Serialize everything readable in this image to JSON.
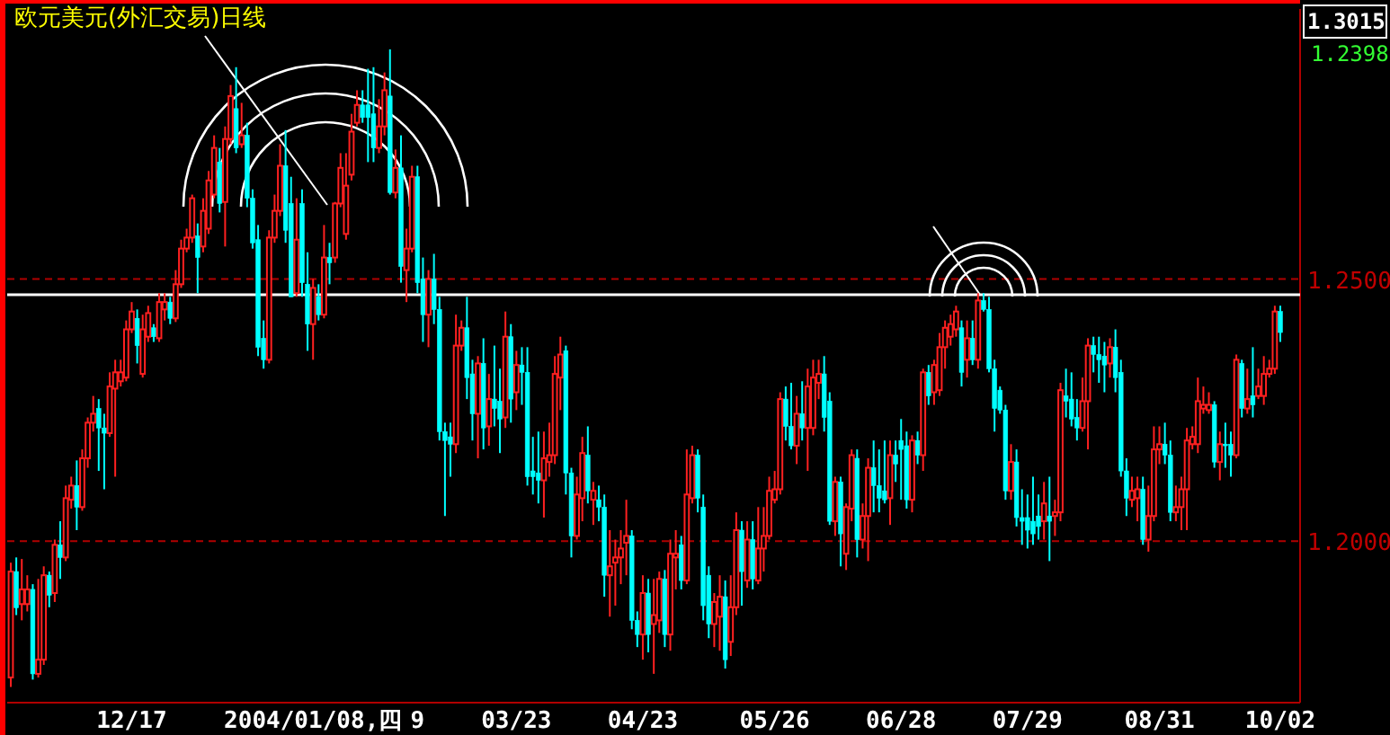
{
  "chart_data": {
    "type": "candlestick",
    "title": "欧元美元(外汇交易)日线",
    "annotations": [
      "1.2398"
    ],
    "categories": [
      null,
      null,
      null,
      null,
      null,
      null,
      null,
      null,
      null,
      null,
      null,
      null,
      null,
      null,
      null,
      null,
      null,
      null,
      null,
      null,
      null,
      null,
      "12/17",
      null,
      null,
      null,
      null,
      null,
      null,
      null,
      null,
      null,
      null,
      null,
      null,
      null,
      null,
      null,
      null,
      null,
      null,
      null,
      null,
      null,
      null,
      null,
      null,
      null,
      null,
      null,
      null,
      null,
      null,
      null,
      null,
      "2004/01/08,四",
      null,
      null,
      null,
      null,
      null,
      null,
      null,
      null,
      null,
      null,
      null,
      null,
      null,
      null,
      null,
      null,
      null,
      null,
      "9",
      null,
      null,
      null,
      null,
      null,
      null,
      null,
      null,
      null,
      null,
      null,
      null,
      null,
      null,
      null,
      null,
      null,
      "03/23",
      null,
      null,
      null,
      null,
      null,
      null,
      null,
      null,
      null,
      null,
      null,
      null,
      null,
      null,
      null,
      null,
      null,
      null,
      null,
      null,
      null,
      null,
      "04/23",
      null,
      null,
      null,
      null,
      null,
      null,
      null,
      null,
      null,
      null,
      null,
      null,
      null,
      null,
      null,
      null,
      null,
      null,
      null,
      null,
      null,
      null,
      null,
      "05/26",
      null,
      null,
      null,
      null,
      null,
      null,
      null,
      null,
      null,
      null,
      null,
      null,
      null,
      null,
      null,
      null,
      null,
      null,
      null,
      null,
      null,
      null,
      "06/28",
      null,
      null,
      null,
      null,
      null,
      null,
      null,
      null,
      null,
      null,
      null,
      null,
      null,
      null,
      null,
      null,
      null,
      null,
      null,
      null,
      null,
      null,
      "07/29",
      null,
      null,
      null,
      null,
      null,
      null,
      null,
      null,
      null,
      null,
      null,
      null,
      null,
      null,
      null,
      null,
      null,
      null,
      null,
      null,
      null,
      null,
      null,
      "08/31",
      null,
      null,
      null,
      null,
      null,
      null,
      null,
      null,
      null,
      null,
      null,
      null,
      null,
      null,
      null,
      null,
      null,
      null,
      null,
      null,
      null,
      "10/02"
    ],
    "ohlc": [
      [
        1.174,
        1.1959,
        1.1722,
        1.1942
      ],
      [
        1.1942,
        1.1969,
        1.1859,
        1.1873
      ],
      [
        1.188,
        1.1966,
        1.1849,
        1.1908
      ],
      [
        1.188,
        1.1935,
        1.1866,
        1.1908
      ],
      [
        1.1908,
        1.1918,
        1.1736,
        1.1747
      ],
      [
        1.1747,
        1.1928,
        1.174,
        1.1774
      ],
      [
        1.1774,
        1.1952,
        1.1764,
        1.1935
      ],
      [
        1.1935,
        1.1942,
        1.1874,
        1.1897
      ],
      [
        1.1901,
        1.2003,
        1.1884,
        1.1993
      ],
      [
        1.1993,
        1.2038,
        1.1928,
        1.1969
      ],
      [
        1.1969,
        1.2106,
        1.1962,
        1.2082
      ],
      [
        1.2079,
        1.2123,
        1.2062,
        1.2106
      ],
      [
        1.2106,
        1.2154,
        1.2021,
        1.2065
      ],
      [
        1.2065,
        1.2175,
        1.2058,
        1.2158
      ],
      [
        1.2158,
        1.2236,
        1.214,
        1.2226
      ],
      [
        1.2226,
        1.2277,
        1.2209,
        1.2243
      ],
      [
        1.2253,
        1.2271,
        1.2134,
        1.2216
      ],
      [
        1.2216,
        1.2243,
        1.2099,
        1.2206
      ],
      [
        1.2206,
        1.2322,
        1.2199,
        1.2295
      ],
      [
        1.2291,
        1.2346,
        1.2123,
        1.2322
      ],
      [
        1.2305,
        1.2346,
        1.2295,
        1.2322
      ],
      [
        1.2312,
        1.2421,
        1.2305,
        1.2404
      ],
      [
        1.2404,
        1.2456,
        1.2397,
        1.2438
      ],
      [
        1.2425,
        1.2442,
        1.2339,
        1.2373
      ],
      [
        1.2319,
        1.2432,
        1.2312,
        1.2404
      ],
      [
        1.239,
        1.2449,
        1.238,
        1.2435
      ],
      [
        1.2407,
        1.2414,
        1.238,
        1.239
      ],
      [
        1.2387,
        1.2473,
        1.238,
        1.2456
      ],
      [
        1.2442,
        1.2473,
        1.2421,
        1.2456
      ],
      [
        1.2456,
        1.2466,
        1.2414,
        1.2425
      ],
      [
        1.2425,
        1.2517,
        1.2418,
        1.249
      ],
      [
        1.249,
        1.2575,
        1.2483,
        1.2558
      ],
      [
        1.2558,
        1.2596,
        1.2551,
        1.2579
      ],
      [
        1.2579,
        1.2661,
        1.2569,
        1.2654
      ],
      [
        1.2582,
        1.2606,
        1.2473,
        1.2541
      ],
      [
        1.2562,
        1.2654,
        1.2551,
        1.263
      ],
      [
        1.2596,
        1.2706,
        1.2586,
        1.2688
      ],
      [
        1.2661,
        1.2774,
        1.2654,
        1.275
      ],
      [
        1.2723,
        1.275,
        1.2627,
        1.2644
      ],
      [
        1.2647,
        1.2791,
        1.2562,
        1.2767
      ],
      [
        1.2767,
        1.287,
        1.2757,
        1.2849
      ],
      [
        1.2825,
        1.2904,
        1.274,
        1.275
      ],
      [
        1.2757,
        1.2836,
        1.275,
        1.2774
      ],
      [
        1.2774,
        1.2798,
        1.2637,
        1.2654
      ],
      [
        1.2654,
        1.2671,
        1.2558,
        1.2569
      ],
      [
        1.2575,
        1.2603,
        1.2353,
        1.237
      ],
      [
        1.2387,
        1.2421,
        1.2329,
        1.2346
      ],
      [
        1.2346,
        1.2593,
        1.2339,
        1.2579
      ],
      [
        1.2579,
        1.2661,
        1.2569,
        1.263
      ],
      [
        1.263,
        1.2757,
        1.262,
        1.2716
      ],
      [
        1.2716,
        1.2784,
        1.2569,
        1.2593
      ],
      [
        1.2644,
        1.2695,
        1.2466,
        1.2466
      ],
      [
        1.2473,
        1.2654,
        1.2466,
        1.2575
      ],
      [
        1.2644,
        1.2671,
        1.2466,
        1.2493
      ],
      [
        1.249,
        1.2551,
        1.2363,
        1.2414
      ],
      [
        1.2414,
        1.25,
        1.2346,
        1.2483
      ],
      [
        1.2466,
        1.249,
        1.2421,
        1.2432
      ],
      [
        1.2432,
        1.2603,
        1.2425,
        1.2541
      ],
      [
        1.2541,
        1.2569,
        1.249,
        1.2531
      ],
      [
        1.2541,
        1.2647,
        1.2531,
        1.2644
      ],
      [
        1.2644,
        1.274,
        1.2637,
        1.2712
      ],
      [
        1.2586,
        1.274,
        1.2575,
        1.2678
      ],
      [
        1.2699,
        1.2815,
        1.2688,
        1.2781
      ],
      [
        1.2798,
        1.286,
        1.2791,
        1.2832
      ],
      [
        1.2832,
        1.286,
        1.2798,
        1.2808
      ],
      [
        1.2832,
        1.2901,
        1.2723,
        1.2808
      ],
      [
        1.2815,
        1.2904,
        1.2723,
        1.275
      ],
      [
        1.275,
        1.2843,
        1.274,
        1.2791
      ],
      [
        1.2791,
        1.2894,
        1.2774,
        1.286
      ],
      [
        1.2849,
        1.2938,
        1.2661,
        1.2665
      ],
      [
        1.2665,
        1.2747,
        1.2654,
        1.2712
      ],
      [
        1.2712,
        1.2774,
        1.2493,
        1.2524
      ],
      [
        1.2517,
        1.2596,
        1.2456,
        1.2558
      ],
      [
        1.2558,
        1.2716,
        1.2551,
        1.2695
      ],
      [
        1.2695,
        1.2716,
        1.2473,
        1.2493
      ],
      [
        1.25,
        1.2541,
        1.238,
        1.2432
      ],
      [
        1.2432,
        1.2517,
        1.237,
        1.25
      ],
      [
        1.25,
        1.2548,
        1.2414,
        1.2442
      ],
      [
        1.2442,
        1.2466,
        1.2192,
        1.2209
      ],
      [
        1.2209,
        1.2226,
        1.2048,
        1.2192
      ],
      [
        1.2199,
        1.2226,
        1.2123,
        1.2185
      ],
      [
        1.2185,
        1.2432,
        1.2168,
        1.2373
      ],
      [
        1.2373,
        1.2421,
        1.2363,
        1.2407
      ],
      [
        1.2407,
        1.2466,
        1.2271,
        1.2312
      ],
      [
        1.2319,
        1.2346,
        1.2192,
        1.2243
      ],
      [
        1.2243,
        1.2353,
        1.2158,
        1.2339
      ],
      [
        1.2339,
        1.2387,
        1.2175,
        1.2216
      ],
      [
        1.2219,
        1.2319,
        1.2182,
        1.2271
      ],
      [
        1.2271,
        1.2373,
        1.2219,
        1.2253
      ],
      [
        1.2267,
        1.2329,
        1.2168,
        1.2233
      ],
      [
        1.2236,
        1.2438,
        1.2216,
        1.239
      ],
      [
        1.239,
        1.2414,
        1.2226,
        1.2271
      ],
      [
        1.2284,
        1.2363,
        1.225,
        1.2336
      ],
      [
        1.2336,
        1.237,
        1.226,
        1.2322
      ],
      [
        1.2322,
        1.237,
        1.2106,
        1.2123
      ],
      [
        1.2134,
        1.2199,
        1.2089,
        1.2123
      ],
      [
        1.213,
        1.2209,
        1.2072,
        1.2116
      ],
      [
        1.2116,
        1.2209,
        1.2045,
        1.2158
      ],
      [
        1.2151,
        1.2226,
        1.2123,
        1.2164
      ],
      [
        1.2164,
        1.2353,
        1.2147,
        1.2319
      ],
      [
        1.2312,
        1.239,
        1.225,
        1.2356
      ],
      [
        1.2363,
        1.2373,
        1.2089,
        1.213
      ],
      [
        1.213,
        1.214,
        1.1969,
        1.201
      ],
      [
        1.201,
        1.2123,
        1.2003,
        1.2089
      ],
      [
        1.2082,
        1.2199,
        1.2038,
        1.2168
      ],
      [
        1.2164,
        1.2219,
        1.2072,
        1.2096
      ],
      [
        1.2079,
        1.2113,
        1.2031,
        1.2096
      ],
      [
        1.2079,
        1.2106,
        1.2038,
        1.2065
      ],
      [
        1.2065,
        1.2089,
        1.1894,
        1.1935
      ],
      [
        1.1935,
        1.2021,
        1.1856,
        1.1952
      ],
      [
        1.1959,
        1.2003,
        1.1877,
        1.1969
      ],
      [
        1.1969,
        1.2021,
        1.1918,
        1.1986
      ],
      [
        1.1997,
        1.2079,
        1.1935,
        1.201
      ],
      [
        1.201,
        1.2021,
        1.1832,
        1.1849
      ],
      [
        1.1849,
        1.1866,
        1.1798,
        1.1822
      ],
      [
        1.1822,
        1.1935,
        1.1774,
        1.1901
      ],
      [
        1.1901,
        1.1928,
        1.1788,
        1.1822
      ],
      [
        1.1842,
        1.1928,
        1.1747,
        1.1859
      ],
      [
        1.1849,
        1.1942,
        1.1825,
        1.1928
      ],
      [
        1.1928,
        1.1945,
        1.1798,
        1.1822
      ],
      [
        1.1822,
        1.2003,
        1.1791,
        1.1976
      ],
      [
        1.1969,
        1.2021,
        1.1908,
        1.1976
      ],
      [
        1.1993,
        1.201,
        1.1908,
        1.1925
      ],
      [
        1.1925,
        1.2175,
        1.1918,
        1.2089
      ],
      [
        1.2082,
        1.2182,
        1.2072,
        1.2164
      ],
      [
        1.2164,
        1.2175,
        1.2055,
        1.2082
      ],
      [
        1.2065,
        1.2089,
        1.1849,
        1.1877
      ],
      [
        1.1935,
        1.1952,
        1.1815,
        1.1842
      ],
      [
        1.1842,
        1.1901,
        1.1798,
        1.1884
      ],
      [
        1.1856,
        1.1935,
        1.1791,
        1.1894
      ],
      [
        1.1894,
        1.1925,
        1.1757,
        1.1774
      ],
      [
        1.1808,
        1.1935,
        1.1781,
        1.1874
      ],
      [
        1.1874,
        1.2055,
        1.1859,
        1.2021
      ],
      [
        1.2021,
        1.2038,
        1.1877,
        1.1942
      ],
      [
        1.1925,
        1.2038,
        1.1911,
        1.2003
      ],
      [
        1.2003,
        1.2038,
        1.1908,
        1.1928
      ],
      [
        1.1925,
        1.2065,
        1.1918,
        1.1986
      ],
      [
        1.1986,
        1.2065,
        1.1942,
        1.201
      ],
      [
        1.201,
        1.2123,
        1.2003,
        1.2096
      ],
      [
        1.2079,
        1.2134,
        1.2072,
        1.2099
      ],
      [
        1.2099,
        1.2284,
        1.2089,
        1.2271
      ],
      [
        1.2271,
        1.2295,
        1.2192,
        1.2219
      ],
      [
        1.2219,
        1.2302,
        1.2175,
        1.2182
      ],
      [
        1.2182,
        1.2277,
        1.2147,
        1.2243
      ],
      [
        1.2243,
        1.2305,
        1.2192,
        1.2216
      ],
      [
        1.2216,
        1.2329,
        1.2134,
        1.2295
      ],
      [
        1.2216,
        1.2346,
        1.2202,
        1.2312
      ],
      [
        1.2302,
        1.2346,
        1.2271,
        1.2319
      ],
      [
        1.2319,
        1.2353,
        1.2209,
        1.2236
      ],
      [
        1.2267,
        1.2284,
        1.2031,
        1.2038
      ],
      [
        1.2038,
        1.2123,
        1.201,
        1.2113
      ],
      [
        1.2113,
        1.2123,
        1.1952,
        1.2014
      ],
      [
        1.1976,
        1.2072,
        1.1945,
        1.2065
      ],
      [
        1.2062,
        1.2175,
        1.2038,
        1.2164
      ],
      [
        1.2158,
        1.2175,
        1.1969,
        1.2003
      ],
      [
        1.2003,
        1.2072,
        1.1986,
        1.2048
      ],
      [
        1.2048,
        1.2158,
        1.1962,
        1.214
      ],
      [
        1.214,
        1.2192,
        1.2055,
        1.2106
      ],
      [
        1.2106,
        1.2175,
        1.2055,
        1.2082
      ],
      [
        1.2096,
        1.2192,
        1.2072,
        1.2079
      ],
      [
        1.2082,
        1.2192,
        1.2031,
        1.2164
      ],
      [
        1.2164,
        1.2192,
        1.2113,
        1.2147
      ],
      [
        1.2192,
        1.2233,
        1.2079,
        1.2175
      ],
      [
        1.2182,
        1.2209,
        1.2062,
        1.2079
      ],
      [
        1.2079,
        1.2202,
        1.2055,
        1.2192
      ],
      [
        1.2192,
        1.2209,
        1.2147,
        1.2164
      ],
      [
        1.2164,
        1.2329,
        1.2134,
        1.2322
      ],
      [
        1.2322,
        1.2336,
        1.226,
        1.2277
      ],
      [
        1.2284,
        1.2346,
        1.226,
        1.2336
      ],
      [
        1.2288,
        1.2397,
        1.2277,
        1.237
      ],
      [
        1.237,
        1.2421,
        1.2329,
        1.2407
      ],
      [
        1.239,
        1.2432,
        1.2373,
        1.2414
      ],
      [
        1.2404,
        1.2449,
        1.239,
        1.2438
      ],
      [
        1.2407,
        1.2421,
        1.2295,
        1.2322
      ],
      [
        1.2346,
        1.2421,
        1.2312,
        1.2387
      ],
      [
        1.2387,
        1.2421,
        1.2336,
        1.2346
      ],
      [
        1.2346,
        1.2473,
        1.2329,
        1.2459
      ],
      [
        1.2459,
        1.2473,
        1.2438,
        1.2442
      ],
      [
        1.2442,
        1.2466,
        1.2322,
        1.2329
      ],
      [
        1.2329,
        1.2346,
        1.2209,
        1.2253
      ],
      [
        1.2288,
        1.2295,
        1.2243,
        1.225
      ],
      [
        1.225,
        1.226,
        1.2079,
        1.2096
      ],
      [
        1.2096,
        1.2185,
        1.2079,
        1.2151
      ],
      [
        1.2151,
        1.2175,
        1.2028,
        1.2045
      ],
      [
        1.2045,
        1.2099,
        1.1993,
        1.2038
      ],
      [
        1.2045,
        1.2089,
        1.1986,
        1.2021
      ],
      [
        1.2038,
        1.2123,
        1.1993,
        1.2014
      ],
      [
        1.2048,
        1.2089,
        1.2003,
        1.2028
      ],
      [
        1.2038,
        1.2113,
        1.2003,
        1.2072
      ],
      [
        1.2048,
        1.2123,
        1.1962,
        1.2038
      ],
      [
        1.2048,
        1.2079,
        1.201,
        1.2055
      ],
      [
        1.2055,
        1.2302,
        1.2038,
        1.2288
      ],
      [
        1.2277,
        1.2329,
        1.2236,
        1.2267
      ],
      [
        1.2271,
        1.2322,
        1.2219,
        1.2233
      ],
      [
        1.2236,
        1.2271,
        1.2192,
        1.2216
      ],
      [
        1.2216,
        1.2312,
        1.2209,
        1.2267
      ],
      [
        1.2267,
        1.2387,
        1.2175,
        1.2373
      ],
      [
        1.2373,
        1.239,
        1.2322,
        1.2356
      ],
      [
        1.2356,
        1.239,
        1.2302,
        1.2346
      ],
      [
        1.2353,
        1.238,
        1.2284,
        1.2336
      ],
      [
        1.2339,
        1.2387,
        1.2312,
        1.237
      ],
      [
        1.237,
        1.2404,
        1.2284,
        1.2312
      ],
      [
        1.2322,
        1.2346,
        1.2123,
        1.2134
      ],
      [
        1.2134,
        1.2158,
        1.2048,
        1.2082
      ],
      [
        1.2079,
        1.2123,
        1.2065,
        1.2096
      ],
      [
        1.2082,
        1.2123,
        1.2038,
        1.2099
      ],
      [
        1.2099,
        1.2123,
        1.1993,
        1.2003
      ],
      [
        1.2003,
        1.2106,
        1.198,
        1.2048
      ],
      [
        1.2048,
        1.2219,
        1.2038,
        1.2175
      ],
      [
        1.2175,
        1.2219,
        1.2147,
        1.2185
      ],
      [
        1.2185,
        1.2226,
        1.2147,
        1.2164
      ],
      [
        1.2164,
        1.2192,
        1.2038,
        1.2055
      ],
      [
        1.2055,
        1.2106,
        1.2038,
        1.2065
      ],
      [
        1.2065,
        1.2123,
        1.2021,
        1.2099
      ],
      [
        1.2099,
        1.2216,
        1.2021,
        1.2192
      ],
      [
        1.2185,
        1.2219,
        1.2175,
        1.2199
      ],
      [
        1.2185,
        1.2312,
        1.2168,
        1.2267
      ],
      [
        1.2253,
        1.2295,
        1.2243,
        1.226
      ],
      [
        1.225,
        1.2284,
        1.2243,
        1.226
      ],
      [
        1.226,
        1.2267,
        1.214,
        1.2151
      ],
      [
        1.2151,
        1.2209,
        1.2116,
        1.2185
      ],
      [
        1.2185,
        1.2226,
        1.214,
        1.2182
      ],
      [
        1.2185,
        1.2209,
        1.2123,
        1.2164
      ],
      [
        1.2164,
        1.2356,
        1.2158,
        1.2346
      ],
      [
        1.2339,
        1.2346,
        1.2236,
        1.2253
      ],
      [
        1.2253,
        1.2329,
        1.2243,
        1.2271
      ],
      [
        1.2277,
        1.237,
        1.2236,
        1.226
      ],
      [
        1.2277,
        1.2329,
        1.2271,
        1.2295
      ],
      [
        1.2277,
        1.2353,
        1.226,
        1.2319
      ],
      [
        1.2319,
        1.2346,
        1.2312,
        1.2329
      ],
      [
        1.2329,
        1.2449,
        1.2319,
        1.2438
      ],
      [
        1.2438,
        1.2449,
        1.238,
        1.2398
      ]
    ],
    "ylim": [
      1.1692,
      1.3015
    ],
    "yticks": [
      {
        "value": 1.2,
        "label": "1.2000"
      },
      {
        "value": 1.25,
        "label": "1.2500"
      },
      1.3015
    ],
    "grid": "y",
    "ref_lines": [
      {
        "axis": "y",
        "value": 1.247,
        "color": "#ffffff",
        "line_style": "solid"
      }
    ]
  }
}
